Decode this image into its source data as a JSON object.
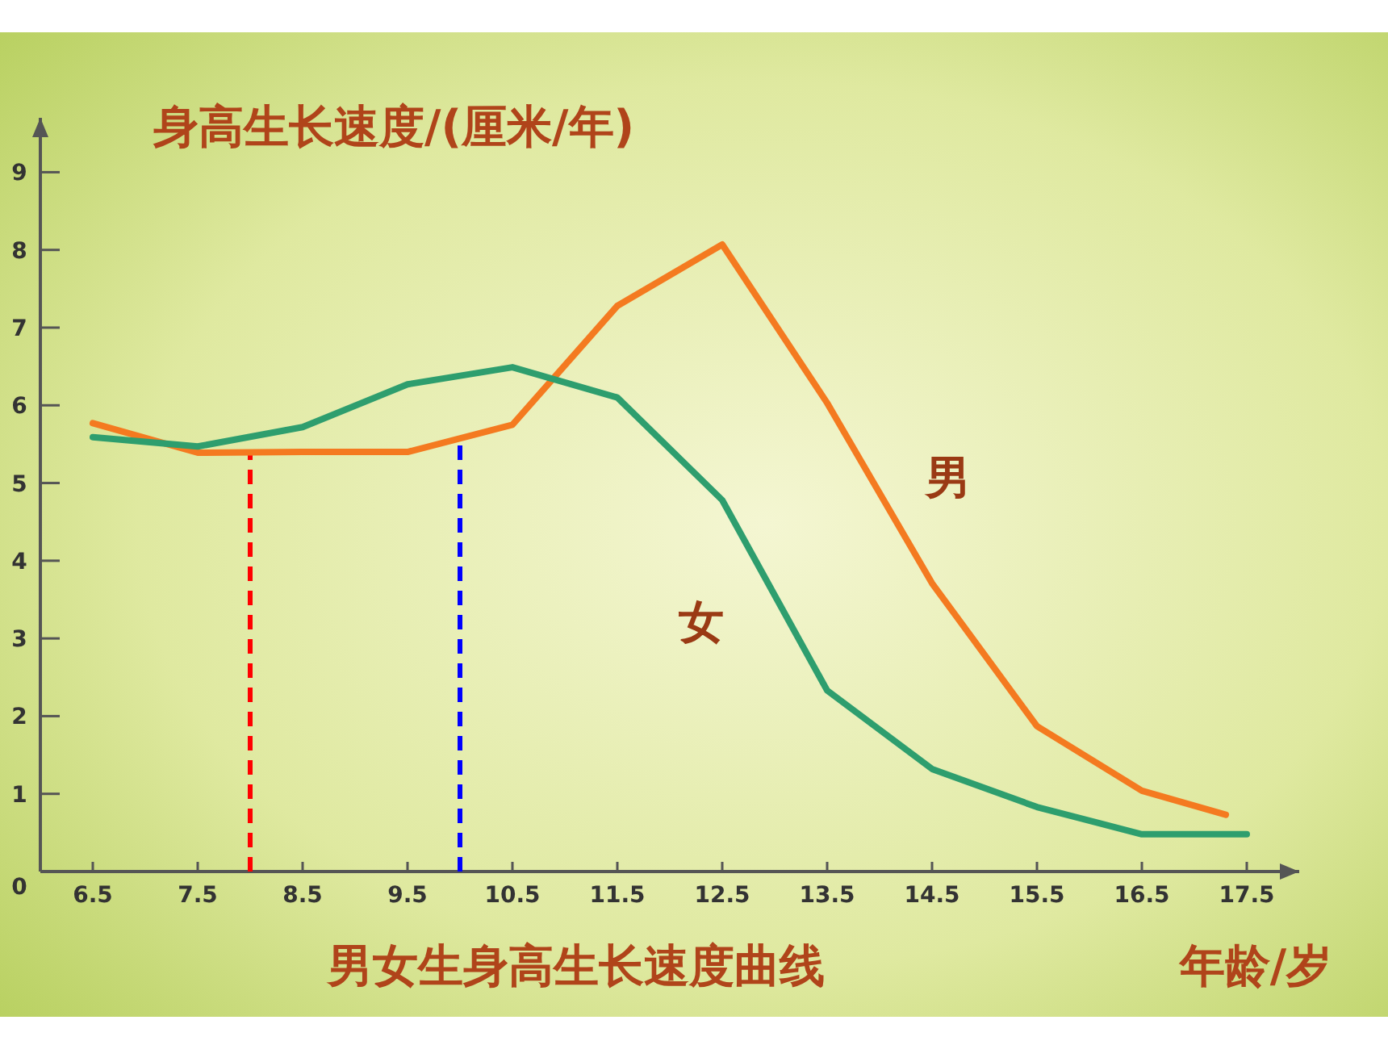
{
  "chart_data": {
    "type": "line",
    "title": "男女生身高生长速度曲线",
    "ylabel": "身高生长速度/(厘米/年)",
    "xlabel": "年龄/岁",
    "xlim": [
      6.0,
      18.0
    ],
    "xticks": [
      6.5,
      7.5,
      8.5,
      9.5,
      10.5,
      11.5,
      12.5,
      13.5,
      14.5,
      15.5,
      16.5,
      17.5
    ],
    "ylim": [
      0,
      9.7
    ],
    "yticks": [
      0,
      1,
      2,
      3,
      4,
      5,
      6,
      7,
      8,
      9
    ],
    "series": [
      {
        "name": "男",
        "color": "#f47a20",
        "x": [
          6.5,
          7.5,
          8.5,
          9.5,
          10.5,
          11.5,
          12.5,
          13.5,
          14.5,
          15.5,
          16.5,
          17.3
        ],
        "values": [
          5.77,
          5.39,
          5.4,
          5.4,
          5.75,
          7.28,
          8.07,
          6.03,
          3.71,
          1.87,
          1.04,
          0.73
        ]
      },
      {
        "name": "女",
        "color": "#2e9e6e",
        "x": [
          6.5,
          7.5,
          8.5,
          9.5,
          10.5,
          11.5,
          12.5,
          13.5,
          14.5,
          15.5,
          16.5,
          17.5
        ],
        "values": [
          5.59,
          5.47,
          5.72,
          6.27,
          6.49,
          6.1,
          4.78,
          2.33,
          1.32,
          0.83,
          0.48,
          0.48
        ]
      }
    ],
    "ref_lines": [
      {
        "axis": "x",
        "value": 8.0,
        "color": "#ff0000",
        "line_style": "dashed"
      },
      {
        "axis": "x",
        "value": 10.0,
        "color": "#0000ff",
        "line_style": "dashed"
      }
    ],
    "grid": false,
    "legend": false,
    "marker": "none",
    "line_style": "solid"
  }
}
